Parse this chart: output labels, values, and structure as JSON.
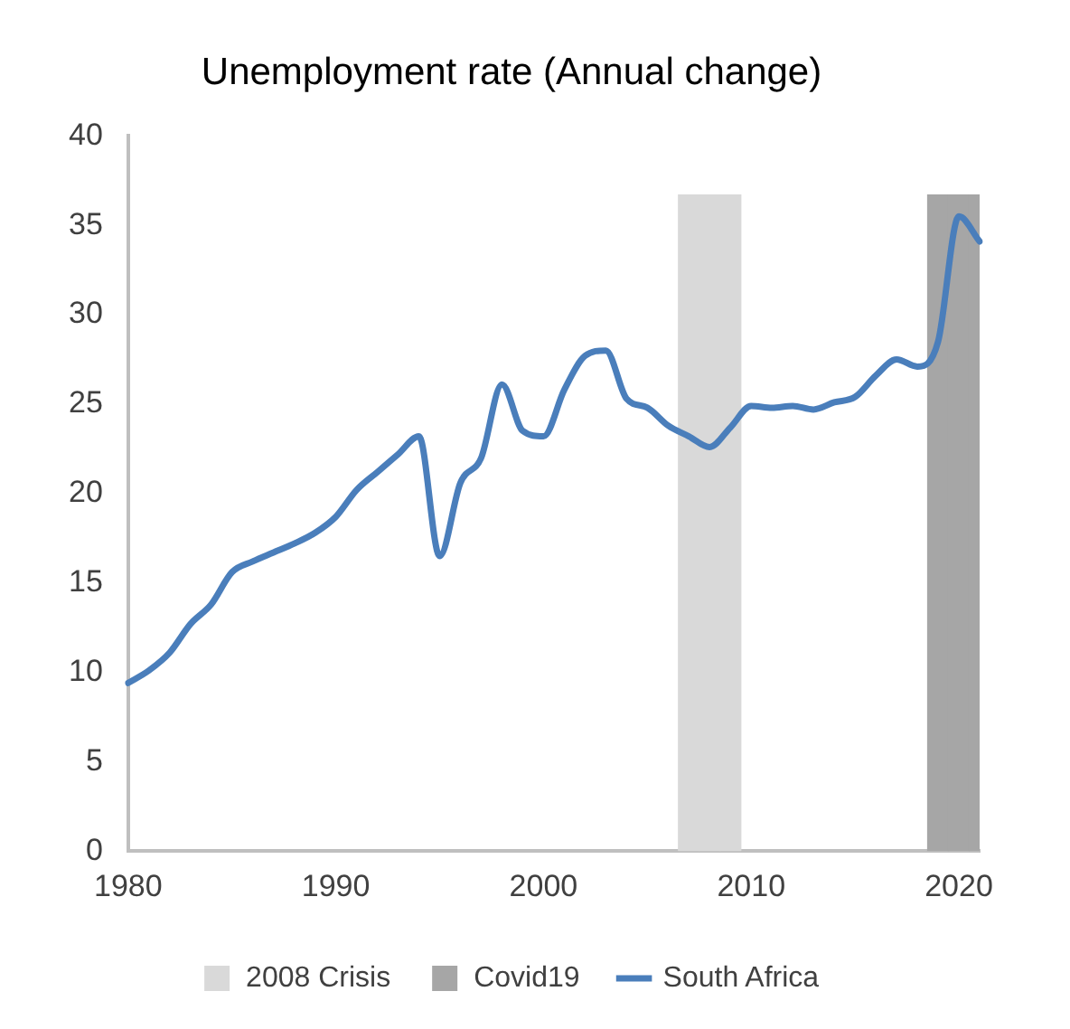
{
  "chart_data": {
    "type": "line",
    "title": "Unemployment rate (Annual change)",
    "categories": [
      "1980",
      null,
      null,
      null,
      null,
      null,
      null,
      null,
      null,
      null,
      "1990",
      null,
      null,
      null,
      null,
      null,
      null,
      null,
      null,
      null,
      "2000",
      null,
      null,
      null,
      null,
      null,
      null,
      null,
      null,
      null,
      "2010",
      null,
      null,
      null,
      null,
      null,
      null,
      null,
      null,
      null,
      "2020",
      null
    ],
    "series": [
      {
        "name": "2008 Crisis",
        "type": "bar",
        "color": "#d9d9d9",
        "values": [
          null,
          null,
          null,
          null,
          null,
          null,
          null,
          null,
          null,
          null,
          null,
          null,
          null,
          null,
          null,
          null,
          null,
          null,
          null,
          null,
          null,
          null,
          null,
          null,
          null,
          null,
          null,
          36.7,
          36.7,
          36.7,
          null,
          null,
          null,
          null,
          null,
          null,
          null,
          null,
          null,
          null,
          null,
          null
        ]
      },
      {
        "name": "Covid19",
        "type": "bar",
        "color": "#a6a6a6",
        "values": [
          null,
          null,
          null,
          null,
          null,
          null,
          null,
          null,
          null,
          null,
          null,
          null,
          null,
          null,
          null,
          null,
          null,
          null,
          null,
          null,
          null,
          null,
          null,
          null,
          null,
          null,
          null,
          null,
          null,
          null,
          null,
          null,
          null,
          null,
          null,
          null,
          null,
          null,
          null,
          36.7,
          36.7,
          36.7
        ]
      },
      {
        "name": "South Africa",
        "color": "#4a7ebb",
        "values": [
          9.4,
          10.1,
          11.1,
          12.7,
          13.8,
          15.6,
          16.2,
          16.7,
          17.2,
          17.8,
          18.7,
          20.2,
          21.2,
          22.2,
          23.2,
          16.5,
          20.6,
          22.0,
          26.1,
          23.5,
          23.2,
          25.8,
          27.7,
          28.0,
          25.3,
          24.8,
          23.8,
          23.2,
          22.6,
          23.7,
          24.9,
          24.8,
          24.9,
          24.7,
          25.1,
          25.4,
          26.6,
          27.5,
          27.1,
          28.5,
          35.5,
          34.1
        ]
      }
    ],
    "ylim": [
      0,
      40
    ],
    "yticks": [
      0,
      5,
      10,
      15,
      20,
      25,
      30,
      35,
      40
    ],
    "grid": false,
    "legend": "bottom",
    "marker": "none",
    "line_style": "solid"
  }
}
